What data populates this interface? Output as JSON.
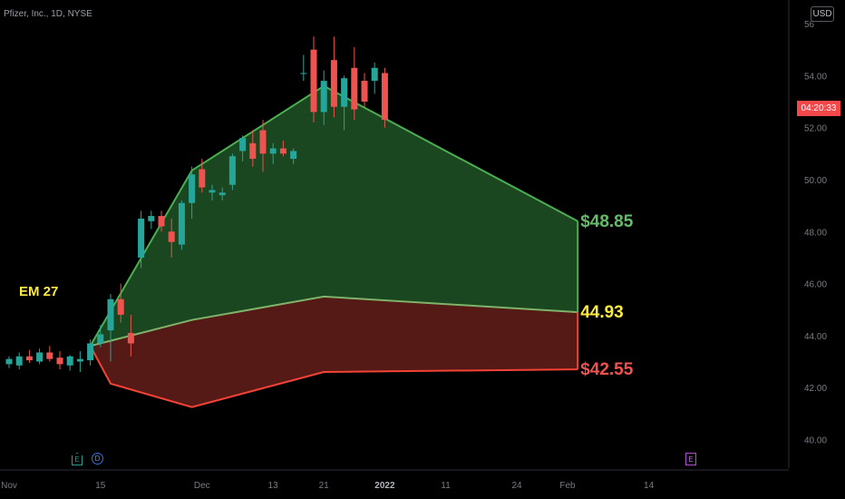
{
  "symbol_label": "Pfizer, Inc., 1D, NYSE",
  "currency_button": "USD",
  "countdown": "04:20:33",
  "annotations": {
    "em_label": "EM 27"
  },
  "event_markers": [
    {
      "label": "E",
      "type": "earnings"
    },
    {
      "label": "D",
      "type": "dividend"
    },
    {
      "label": "E",
      "type": "earnings"
    }
  ],
  "colors": {
    "background": "#000000",
    "up": "#26a69a",
    "down": "#ef5350",
    "upper_band": "#4caf50",
    "upper_fill": "#1b4a22",
    "lower_band": "#f44336",
    "lower_fill": "#5a1a17",
    "mid_label": "#ffeb3b"
  },
  "chart_data": {
    "type": "candlestick",
    "y_axis": {
      "ticks": [
        "40.00",
        "42.00",
        "44.00",
        "46.00",
        "48.00",
        "50.00",
        "52.00",
        "54.00",
        "56"
      ],
      "tick_values": [
        40,
        42,
        44,
        46,
        48,
        50,
        52,
        54,
        56
      ],
      "ylim": [
        38.9,
        56.7
      ]
    },
    "x_axis": {
      "ticks": [
        "Nov",
        "15",
        "Dec",
        "13",
        "21",
        "2022",
        "11",
        "24",
        "Feb",
        "14"
      ],
      "tick_bar_index": [
        0,
        9,
        19,
        26,
        31,
        37,
        43,
        50,
        55,
        63
      ]
    },
    "candles": [
      {
        "o": 42.9,
        "h": 43.2,
        "l": 42.75,
        "c": 43.1
      },
      {
        "o": 42.85,
        "h": 43.35,
        "l": 42.7,
        "c": 43.2
      },
      {
        "o": 43.2,
        "h": 43.45,
        "l": 42.95,
        "c": 43.05
      },
      {
        "o": 43.0,
        "h": 43.5,
        "l": 42.9,
        "c": 43.35
      },
      {
        "o": 43.35,
        "h": 43.6,
        "l": 43.0,
        "c": 43.1
      },
      {
        "o": 43.15,
        "h": 43.4,
        "l": 42.7,
        "c": 42.9
      },
      {
        "o": 42.85,
        "h": 43.25,
        "l": 42.65,
        "c": 43.2
      },
      {
        "o": 43.0,
        "h": 43.4,
        "l": 42.6,
        "c": 43.1
      },
      {
        "o": 43.05,
        "h": 43.85,
        "l": 42.85,
        "c": 43.7
      },
      {
        "o": 43.7,
        "h": 44.4,
        "l": 43.55,
        "c": 44.05
      },
      {
        "o": 44.2,
        "h": 45.6,
        "l": 43.0,
        "c": 45.4
      },
      {
        "o": 45.4,
        "h": 46.0,
        "l": 44.5,
        "c": 44.8
      },
      {
        "o": 44.1,
        "h": 44.8,
        "l": 43.2,
        "c": 43.7
      },
      {
        "o": 47.0,
        "h": 48.8,
        "l": 46.6,
        "c": 48.5
      },
      {
        "o": 48.4,
        "h": 48.8,
        "l": 48.1,
        "c": 48.6
      },
      {
        "o": 48.6,
        "h": 48.8,
        "l": 48.0,
        "c": 48.2
      },
      {
        "o": 48.0,
        "h": 48.5,
        "l": 47.0,
        "c": 47.6
      },
      {
        "o": 47.5,
        "h": 49.2,
        "l": 47.3,
        "c": 49.1
      },
      {
        "o": 49.1,
        "h": 50.5,
        "l": 48.5,
        "c": 50.2
      },
      {
        "o": 50.4,
        "h": 50.8,
        "l": 49.5,
        "c": 49.7
      },
      {
        "o": 49.5,
        "h": 49.8,
        "l": 49.2,
        "c": 49.6
      },
      {
        "o": 49.4,
        "h": 49.7,
        "l": 49.2,
        "c": 49.5
      },
      {
        "o": 49.8,
        "h": 51.0,
        "l": 49.6,
        "c": 50.9
      },
      {
        "o": 51.1,
        "h": 51.7,
        "l": 50.7,
        "c": 51.6
      },
      {
        "o": 51.4,
        "h": 51.9,
        "l": 50.5,
        "c": 50.8
      },
      {
        "o": 51.9,
        "h": 52.3,
        "l": 50.3,
        "c": 51.0
      },
      {
        "o": 51.0,
        "h": 51.4,
        "l": 50.6,
        "c": 51.2
      },
      {
        "o": 51.2,
        "h": 51.5,
        "l": 50.9,
        "c": 51.0
      },
      {
        "o": 50.8,
        "h": 51.2,
        "l": 50.6,
        "c": 51.1
      },
      {
        "o": 54.1,
        "h": 54.8,
        "l": 53.8,
        "c": 54.1
      },
      {
        "o": 55.0,
        "h": 55.5,
        "l": 52.2,
        "c": 52.6
      },
      {
        "o": 52.6,
        "h": 54.2,
        "l": 52.1,
        "c": 53.8
      },
      {
        "o": 54.6,
        "h": 55.5,
        "l": 52.4,
        "c": 52.8
      },
      {
        "o": 52.8,
        "h": 54.0,
        "l": 51.9,
        "c": 53.9
      },
      {
        "o": 54.3,
        "h": 55.1,
        "l": 52.3,
        "c": 52.7
      },
      {
        "o": 53.8,
        "h": 54.1,
        "l": 52.8,
        "c": 53.0
      },
      {
        "o": 53.8,
        "h": 54.5,
        "l": 53.3,
        "c": 54.3
      },
      {
        "o": 54.1,
        "h": 54.3,
        "l": 52.0,
        "c": 52.3
      }
    ],
    "expected_move": {
      "start_bar": 8,
      "upper": [
        {
          "bar": 8,
          "y": 43.6
        },
        {
          "bar": 18,
          "y": 50.35
        },
        {
          "bar": 31,
          "y": 53.6
        },
        {
          "bar": 56,
          "y": 48.4
        }
      ],
      "mid": [
        {
          "bar": 8,
          "y": 43.6
        },
        {
          "bar": 18,
          "y": 44.6
        },
        {
          "bar": 31,
          "y": 45.5
        },
        {
          "bar": 56,
          "y": 44.9
        }
      ],
      "lower": [
        {
          "bar": 8,
          "y": 43.6
        },
        {
          "bar": 10,
          "y": 42.15
        },
        {
          "bar": 18,
          "y": 41.25
        },
        {
          "bar": 31,
          "y": 42.6
        },
        {
          "bar": 56,
          "y": 42.7
        }
      ],
      "labels": {
        "upper": "$48.85",
        "mid": "44.93",
        "lower": "$42.55"
      }
    }
  }
}
